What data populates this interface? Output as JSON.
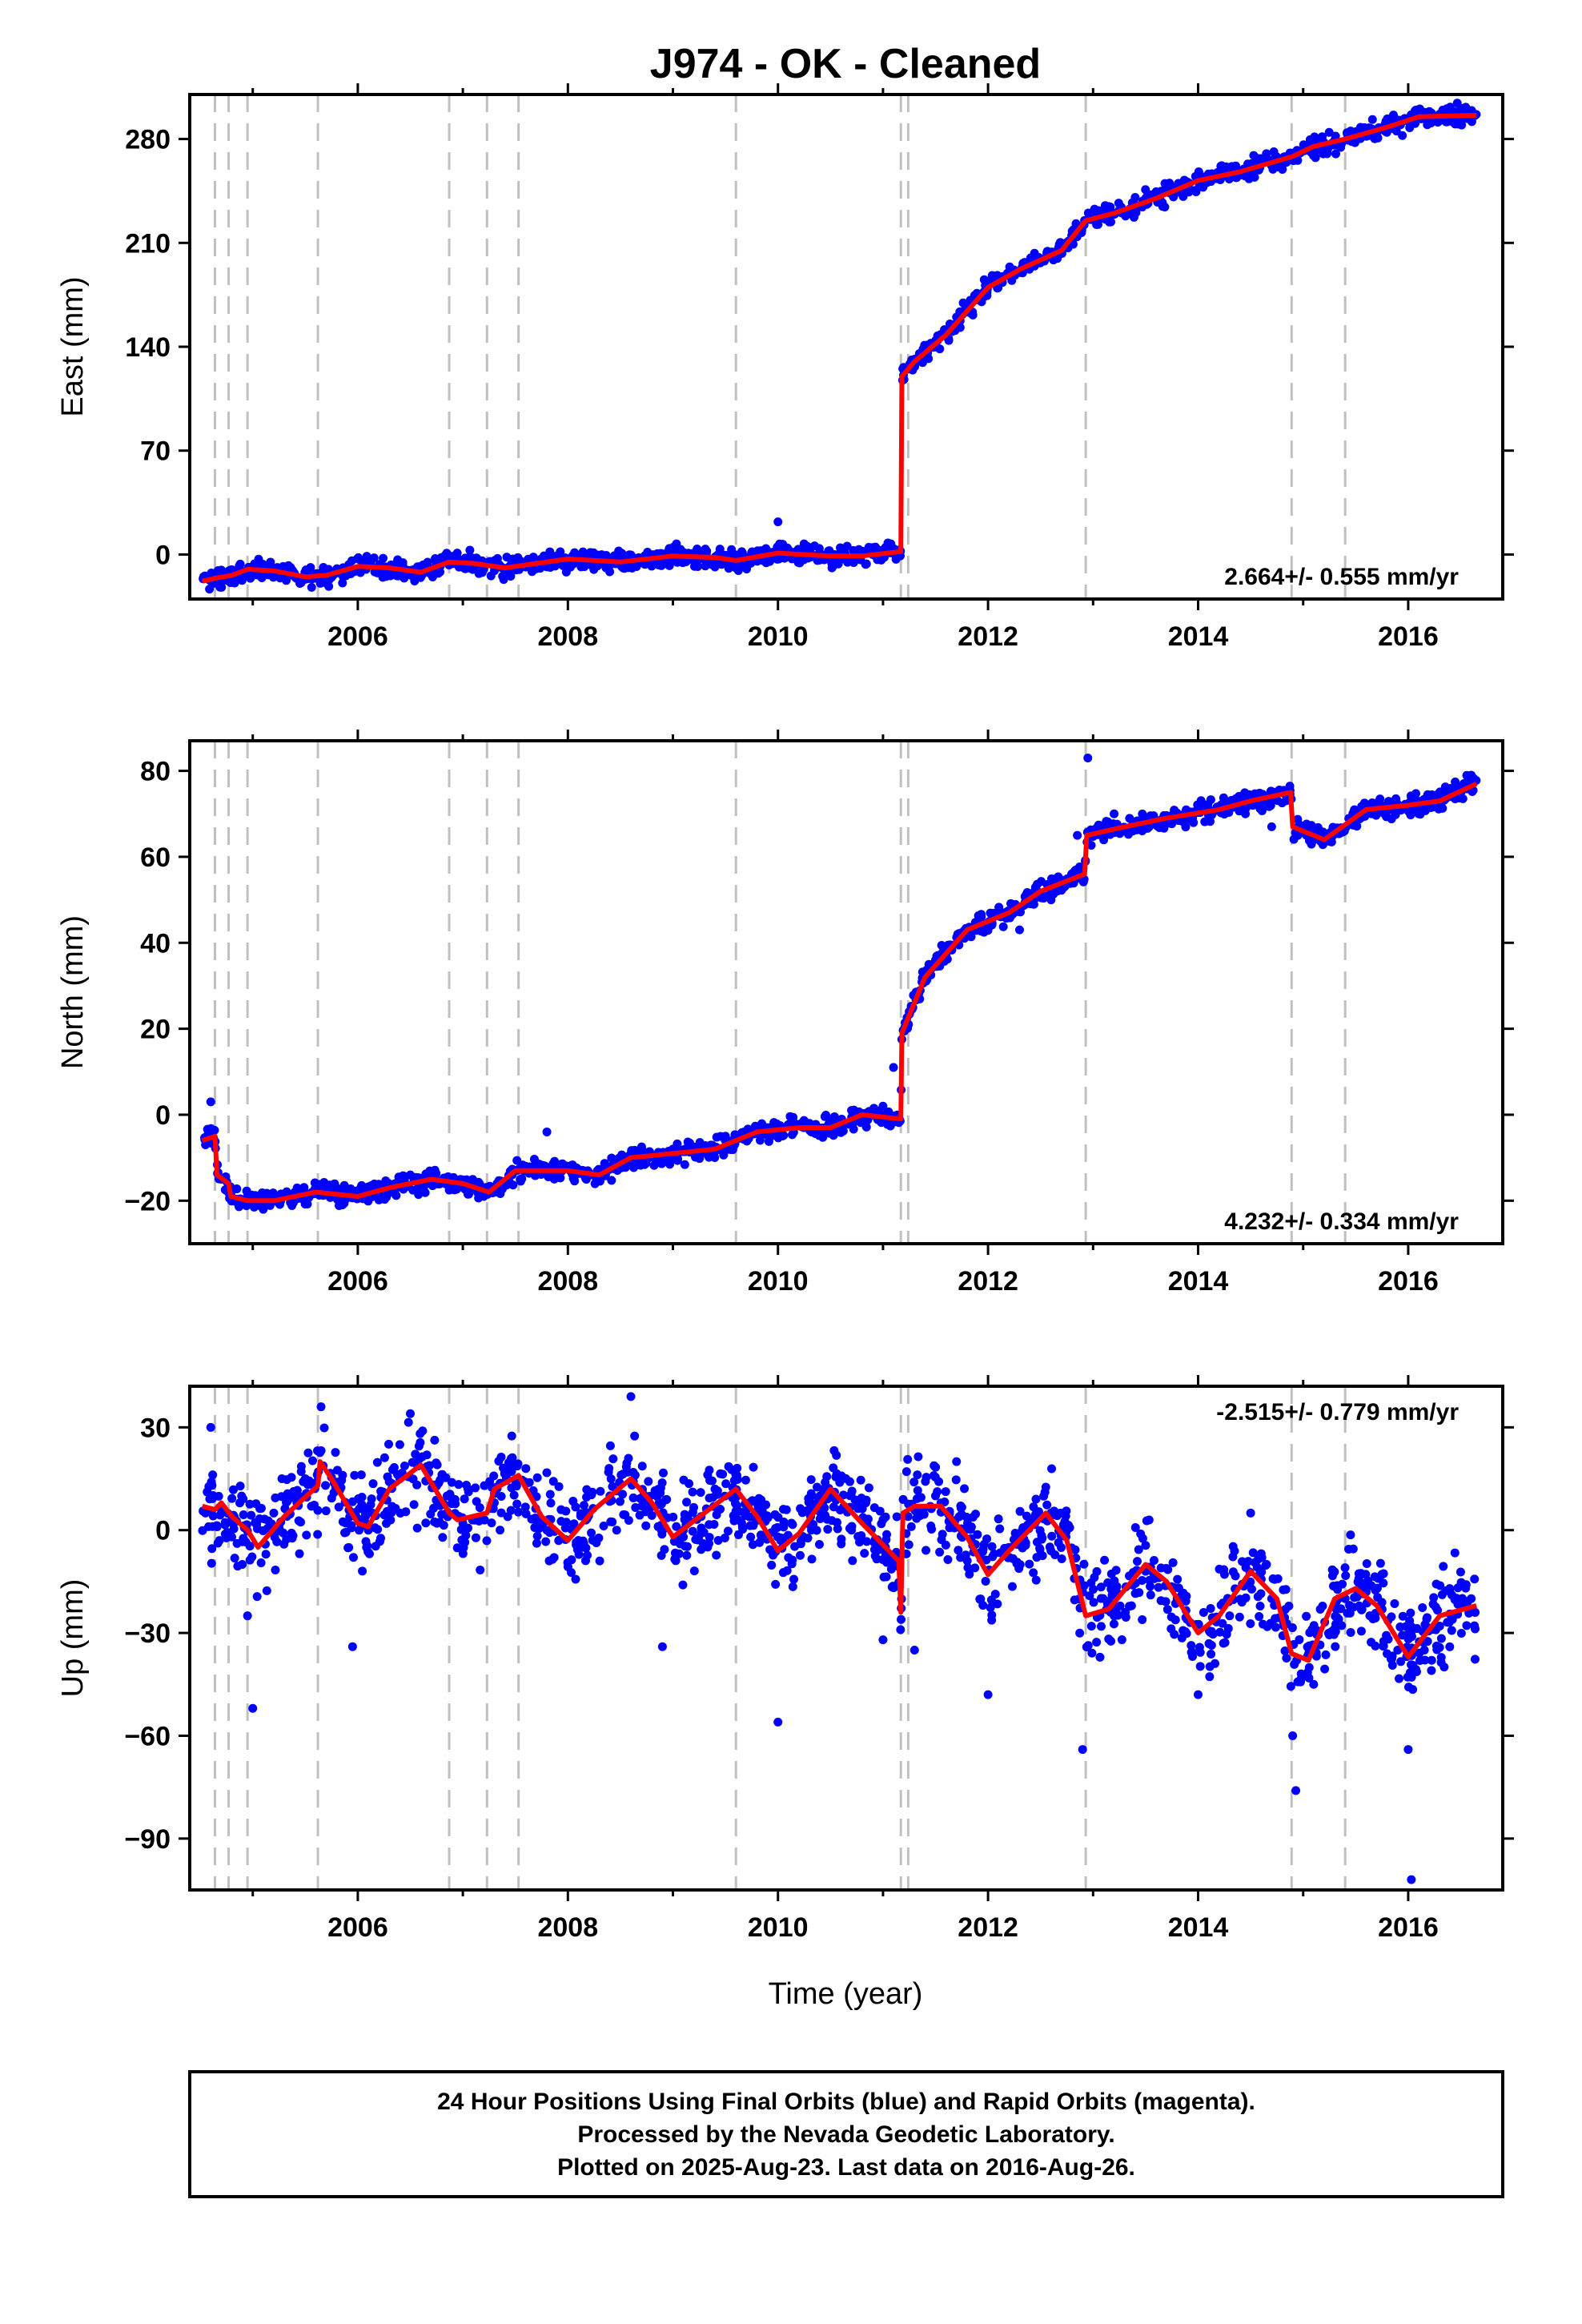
{
  "chart_data": {
    "type": "scatter",
    "title": "J974  - OK - Cleaned",
    "xlabel": "Time (year)",
    "x_range": [
      2004.4,
      2016.9
    ],
    "x_ticks": [
      2006,
      2008,
      2010,
      2012,
      2014,
      2016
    ],
    "event_lines": [
      2004.64,
      2004.77,
      2004.95,
      2005.62,
      2006.87,
      2007.23,
      2007.53,
      2009.6,
      2011.17,
      2011.24,
      2012.93,
      2014.89,
      2015.4
    ],
    "colors": {
      "data": "#0000ff",
      "model": "#ff0000",
      "event": "#c0c0c0"
    },
    "panels": [
      {
        "name": "East",
        "ylabel": "East (mm)",
        "ylim": [
          -30,
          310
        ],
        "y_ticks": [
          0,
          70,
          140,
          210,
          280
        ],
        "rate_label": "2.664+/- 0.555 mm/yr",
        "rate_position": "bottom-right",
        "model": [
          [
            2004.52,
            -18
          ],
          [
            2004.64,
            -16
          ],
          [
            2004.8,
            -14
          ],
          [
            2004.95,
            -10
          ],
          [
            2005.2,
            -11
          ],
          [
            2005.5,
            -15
          ],
          [
            2005.7,
            -14
          ],
          [
            2006.0,
            -8
          ],
          [
            2006.3,
            -9
          ],
          [
            2006.6,
            -12
          ],
          [
            2006.87,
            -5
          ],
          [
            2007.1,
            -6
          ],
          [
            2007.4,
            -9
          ],
          [
            2007.6,
            -7
          ],
          [
            2008.0,
            -3
          ],
          [
            2008.5,
            -5
          ],
          [
            2009.0,
            -1
          ],
          [
            2009.4,
            -2
          ],
          [
            2009.6,
            -4
          ],
          [
            2010.0,
            1
          ],
          [
            2010.5,
            -1
          ],
          [
            2010.8,
            -1
          ],
          [
            2011.17,
            2
          ],
          [
            2011.18,
            120
          ],
          [
            2011.3,
            130
          ],
          [
            2011.6,
            148
          ],
          [
            2012.0,
            180
          ],
          [
            2012.3,
            192
          ],
          [
            2012.7,
            205
          ],
          [
            2012.93,
            225
          ],
          [
            2013.2,
            230
          ],
          [
            2013.6,
            240
          ],
          [
            2014.0,
            252
          ],
          [
            2014.4,
            258
          ],
          [
            2014.89,
            268
          ],
          [
            2015.1,
            275
          ],
          [
            2015.4,
            280
          ],
          [
            2015.8,
            288
          ],
          [
            2016.1,
            295
          ],
          [
            2016.65,
            296
          ]
        ],
        "points": [
          [
            2004.55,
            -16
          ],
          [
            2004.7,
            -13
          ],
          [
            2004.85,
            -12
          ],
          [
            2005.0,
            -9
          ],
          [
            2005.3,
            -12
          ],
          [
            2005.6,
            -16
          ],
          [
            2005.9,
            -9
          ],
          [
            2006.2,
            -8
          ],
          [
            2006.5,
            -12
          ],
          [
            2006.9,
            -5
          ],
          [
            2007.2,
            -6
          ],
          [
            2007.5,
            -10
          ],
          [
            2007.8,
            -5
          ],
          [
            2008.1,
            -3
          ],
          [
            2008.4,
            -6
          ],
          [
            2008.9,
            -2
          ],
          [
            2009.2,
            -1
          ],
          [
            2009.5,
            -3
          ],
          [
            2009.9,
            2
          ],
          [
            2010.0,
            22
          ],
          [
            2010.3,
            0
          ],
          [
            2010.6,
            -2
          ],
          [
            2010.9,
            0
          ],
          [
            2011.1,
            4
          ],
          [
            2011.2,
            118
          ],
          [
            2011.4,
            135
          ],
          [
            2011.7,
            160
          ],
          [
            2012.0,
            184
          ],
          [
            2012.4,
            196
          ],
          [
            2012.8,
            212
          ],
          [
            2013.1,
            228
          ],
          [
            2013.5,
            236
          ],
          [
            2013.9,
            250
          ],
          [
            2014.3,
            256
          ],
          [
            2014.7,
            262
          ],
          [
            2015.0,
            272
          ],
          [
            2015.3,
            279
          ],
          [
            2015.7,
            284
          ],
          [
            2016.0,
            292
          ],
          [
            2016.3,
            296
          ],
          [
            2016.6,
            298
          ]
        ]
      },
      {
        "name": "North",
        "ylabel": "North (mm)",
        "ylim": [
          -30,
          87
        ],
        "y_ticks": [
          -20,
          0,
          20,
          40,
          60,
          80
        ],
        "rate_label": "4.232+/- 0.334 mm/yr",
        "rate_position": "bottom-right",
        "model": [
          [
            2004.52,
            -6
          ],
          [
            2004.64,
            -5
          ],
          [
            2004.66,
            -14
          ],
          [
            2004.77,
            -16
          ],
          [
            2004.79,
            -19
          ],
          [
            2004.95,
            -20
          ],
          [
            2005.2,
            -20
          ],
          [
            2005.6,
            -18
          ],
          [
            2006.0,
            -19
          ],
          [
            2006.3,
            -17
          ],
          [
            2006.7,
            -15
          ],
          [
            2007.0,
            -16
          ],
          [
            2007.25,
            -18
          ],
          [
            2007.5,
            -13
          ],
          [
            2008.0,
            -13
          ],
          [
            2008.3,
            -14
          ],
          [
            2008.6,
            -10
          ],
          [
            2009.0,
            -9
          ],
          [
            2009.4,
            -8
          ],
          [
            2009.8,
            -4
          ],
          [
            2010.2,
            -3
          ],
          [
            2010.5,
            -3
          ],
          [
            2010.8,
            0
          ],
          [
            2011.17,
            -1
          ],
          [
            2011.18,
            19
          ],
          [
            2011.4,
            32
          ],
          [
            2011.8,
            43
          ],
          [
            2012.2,
            47
          ],
          [
            2012.5,
            52
          ],
          [
            2012.92,
            56
          ],
          [
            2012.94,
            65
          ],
          [
            2013.3,
            67
          ],
          [
            2013.7,
            69
          ],
          [
            2014.2,
            71
          ],
          [
            2014.5,
            73
          ],
          [
            2014.88,
            75
          ],
          [
            2014.9,
            67
          ],
          [
            2015.2,
            64
          ],
          [
            2015.6,
            71
          ],
          [
            2016.0,
            72
          ],
          [
            2016.3,
            73
          ],
          [
            2016.65,
            77
          ]
        ],
        "points": [
          [
            2004.55,
            -7
          ],
          [
            2004.6,
            3
          ],
          [
            2004.7,
            -15
          ],
          [
            2004.9,
            -20
          ],
          [
            2005.1,
            -22
          ],
          [
            2005.4,
            -18
          ],
          [
            2005.8,
            -19
          ],
          [
            2006.1,
            -17
          ],
          [
            2006.5,
            -14
          ],
          [
            2006.9,
            -16
          ],
          [
            2007.2,
            -19
          ],
          [
            2007.6,
            -12
          ],
          [
            2007.8,
            -4
          ],
          [
            2008.2,
            -14
          ],
          [
            2008.6,
            -9
          ],
          [
            2009.0,
            -8
          ],
          [
            2009.5,
            -5
          ],
          [
            2009.9,
            -3
          ],
          [
            2010.3,
            -2
          ],
          [
            2010.7,
            1
          ],
          [
            2011.0,
            2
          ],
          [
            2011.1,
            11
          ],
          [
            2011.25,
            24
          ],
          [
            2011.5,
            36
          ],
          [
            2011.9,
            44
          ],
          [
            2012.3,
            43
          ],
          [
            2012.6,
            50
          ],
          [
            2012.85,
            65
          ],
          [
            2012.95,
            83
          ],
          [
            2013.2,
            70
          ],
          [
            2013.6,
            68
          ],
          [
            2014.0,
            72
          ],
          [
            2014.45,
            70
          ],
          [
            2014.7,
            67
          ],
          [
            2014.95,
            65
          ],
          [
            2015.3,
            66
          ],
          [
            2015.7,
            72
          ],
          [
            2016.1,
            70
          ],
          [
            2016.4,
            74
          ],
          [
            2016.6,
            79
          ]
        ]
      },
      {
        "name": "Up",
        "ylabel": "Up (mm)",
        "ylim": [
          -105,
          42
        ],
        "y_ticks": [
          -90,
          -60,
          -30,
          0,
          30
        ],
        "rate_label": "-2.515+/- 0.779 mm/yr",
        "rate_position": "top-right",
        "model": [
          [
            2004.52,
            7
          ],
          [
            2004.64,
            6
          ],
          [
            2004.7,
            8
          ],
          [
            2004.8,
            4
          ],
          [
            2004.95,
            0
          ],
          [
            2005.05,
            -5
          ],
          [
            2005.3,
            4
          ],
          [
            2005.62,
            13
          ],
          [
            2005.64,
            20
          ],
          [
            2005.75,
            15
          ],
          [
            2006.0,
            2
          ],
          [
            2006.1,
            1
          ],
          [
            2006.3,
            12
          ],
          [
            2006.6,
            19
          ],
          [
            2006.87,
            5
          ],
          [
            2006.95,
            3
          ],
          [
            2007.23,
            5
          ],
          [
            2007.3,
            12
          ],
          [
            2007.53,
            16
          ],
          [
            2007.75,
            4
          ],
          [
            2008.0,
            -3
          ],
          [
            2008.25,
            6
          ],
          [
            2008.6,
            15
          ],
          [
            2008.8,
            8
          ],
          [
            2009.0,
            -2
          ],
          [
            2009.3,
            5
          ],
          [
            2009.6,
            12
          ],
          [
            2009.8,
            4
          ],
          [
            2010.0,
            -6
          ],
          [
            2010.2,
            -1
          ],
          [
            2010.5,
            12
          ],
          [
            2010.8,
            2
          ],
          [
            2011.15,
            -9
          ],
          [
            2011.17,
            -24
          ],
          [
            2011.19,
            5
          ],
          [
            2011.3,
            7
          ],
          [
            2011.55,
            7
          ],
          [
            2011.8,
            -2
          ],
          [
            2012.0,
            -13
          ],
          [
            2012.2,
            -6
          ],
          [
            2012.55,
            5
          ],
          [
            2012.75,
            -3
          ],
          [
            2012.93,
            -25
          ],
          [
            2013.15,
            -23
          ],
          [
            2013.5,
            -10
          ],
          [
            2013.7,
            -15
          ],
          [
            2014.0,
            -30
          ],
          [
            2014.2,
            -25
          ],
          [
            2014.5,
            -12
          ],
          [
            2014.75,
            -20
          ],
          [
            2014.89,
            -36
          ],
          [
            2015.05,
            -38
          ],
          [
            2015.3,
            -20
          ],
          [
            2015.5,
            -17
          ],
          [
            2015.7,
            -22
          ],
          [
            2016.0,
            -37
          ],
          [
            2016.3,
            -25
          ],
          [
            2016.65,
            -22
          ]
        ],
        "points": [
          [
            2004.55,
            5
          ],
          [
            2004.6,
            30
          ],
          [
            2004.8,
            -2
          ],
          [
            2004.9,
            -10
          ],
          [
            2004.95,
            -25
          ],
          [
            2005.0,
            -52
          ],
          [
            2005.2,
            5
          ],
          [
            2005.5,
            15
          ],
          [
            2005.65,
            36
          ],
          [
            2005.8,
            14
          ],
          [
            2005.95,
            -34
          ],
          [
            2006.1,
            0
          ],
          [
            2006.4,
            15
          ],
          [
            2006.5,
            34
          ],
          [
            2006.8,
            8
          ],
          [
            2007.0,
            2
          ],
          [
            2007.3,
            8
          ],
          [
            2007.6,
            18
          ],
          [
            2007.8,
            0
          ],
          [
            2008.1,
            -3
          ],
          [
            2008.4,
            10
          ],
          [
            2008.6,
            39
          ],
          [
            2008.9,
            -34
          ],
          [
            2009.1,
            0
          ],
          [
            2009.4,
            12
          ],
          [
            2009.7,
            6
          ],
          [
            2010.0,
            -56
          ],
          [
            2010.1,
            -8
          ],
          [
            2010.4,
            10
          ],
          [
            2010.7,
            0
          ],
          [
            2011.0,
            -32
          ],
          [
            2011.1,
            -10
          ],
          [
            2011.3,
            -35
          ],
          [
            2011.5,
            10
          ],
          [
            2011.7,
            20
          ],
          [
            2012.0,
            -48
          ],
          [
            2012.3,
            -2
          ],
          [
            2012.6,
            5
          ],
          [
            2012.9,
            -64
          ],
          [
            2013.2,
            -25
          ],
          [
            2013.5,
            -12
          ],
          [
            2013.8,
            -20
          ],
          [
            2014.0,
            -48
          ],
          [
            2014.3,
            -25
          ],
          [
            2014.5,
            5
          ],
          [
            2014.7,
            -20
          ],
          [
            2014.9,
            -60
          ],
          [
            2014.93,
            -76
          ],
          [
            2015.1,
            -45
          ],
          [
            2015.4,
            -20
          ],
          [
            2015.6,
            -18
          ],
          [
            2015.9,
            -35
          ],
          [
            2016.0,
            -64
          ],
          [
            2016.03,
            -102
          ],
          [
            2016.3,
            -28
          ],
          [
            2016.6,
            -20
          ]
        ]
      }
    ],
    "footer_lines": [
      "24 Hour Positions Using Final Orbits (blue) and Rapid Orbits (magenta).",
      "Processed by the Nevada Geodetic Laboratory.",
      "Plotted on 2025-Aug-23. Last data on 2016-Aug-26."
    ]
  }
}
